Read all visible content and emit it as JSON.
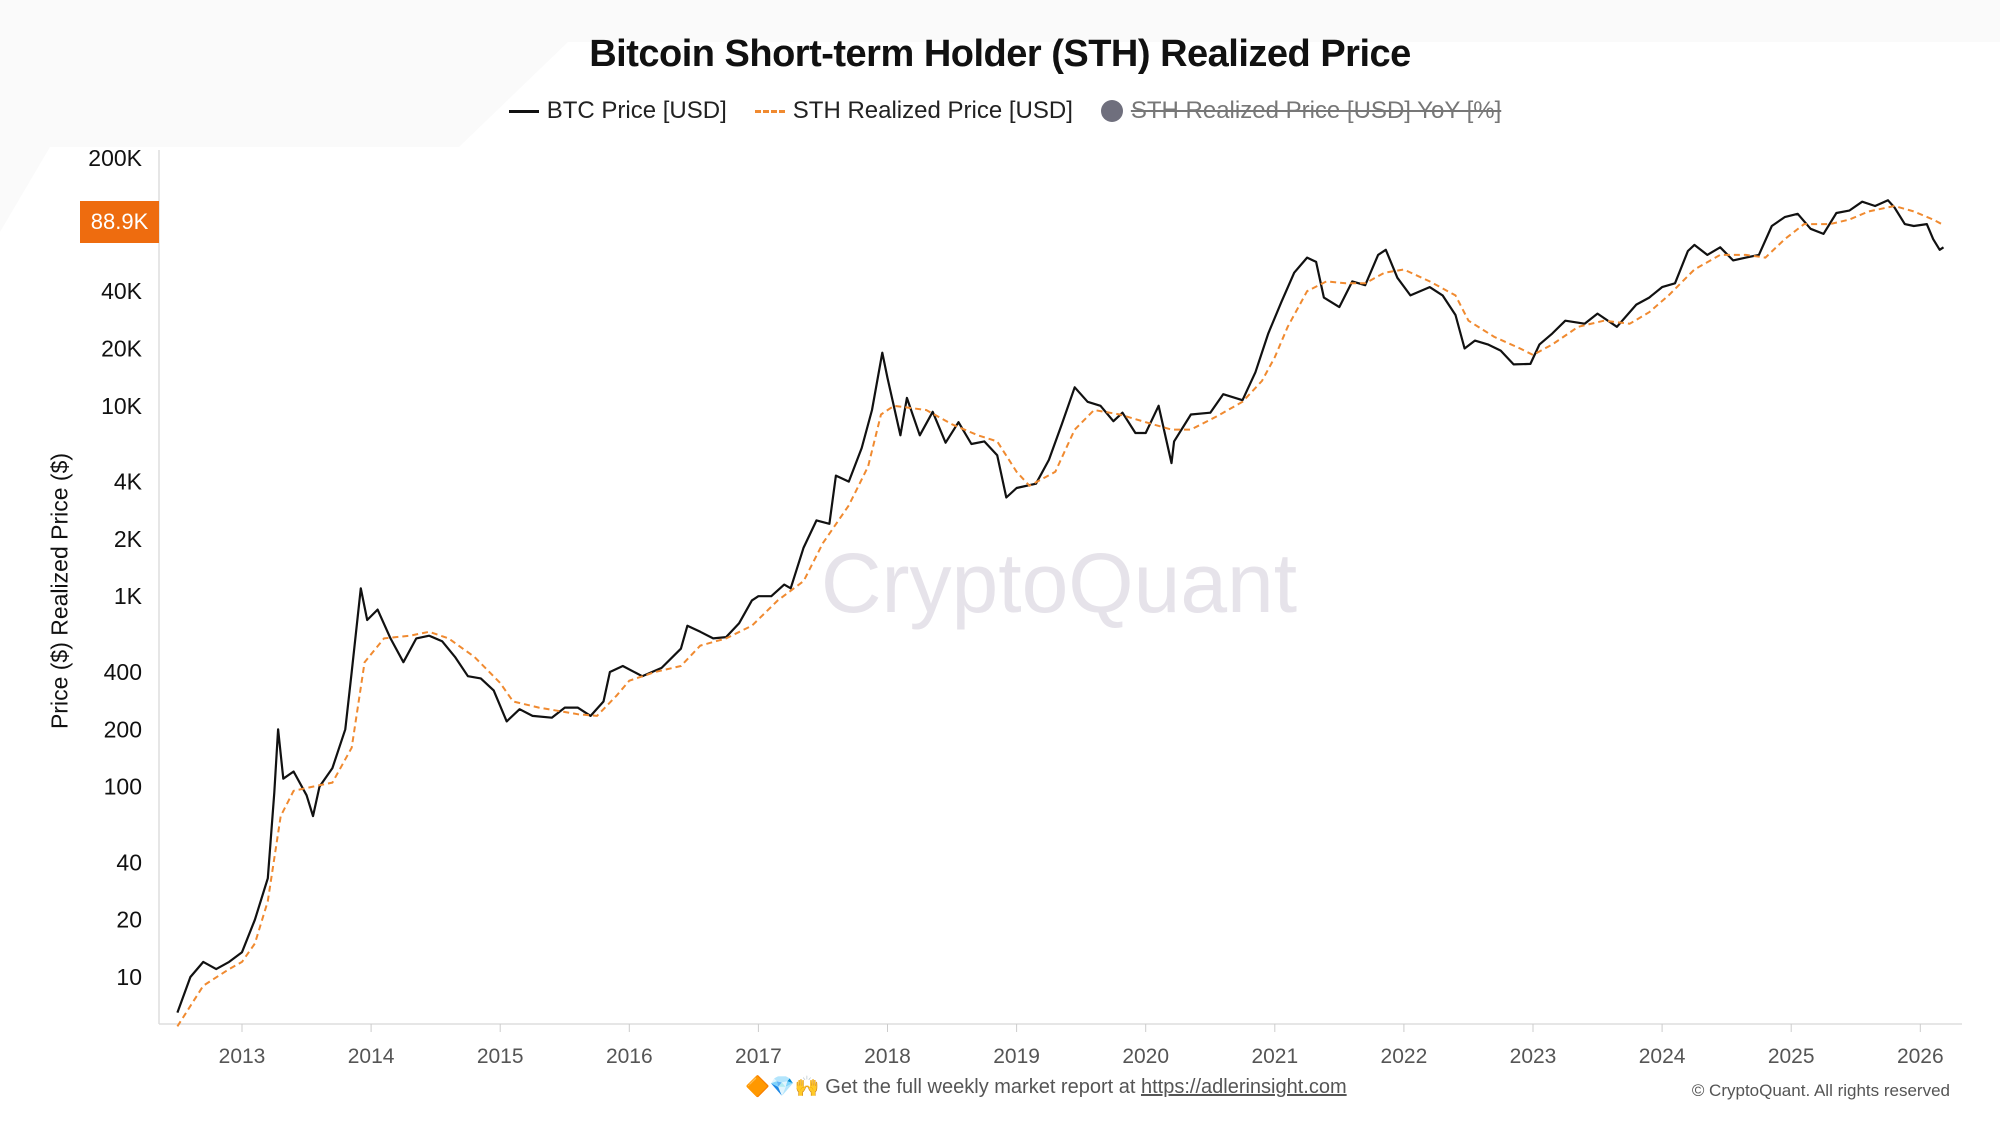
{
  "title": "Bitcoin Short-term Holder (STH) Realized Price",
  "legend": [
    {
      "label": "BTC Price [USD]",
      "active": true
    },
    {
      "label": "STH Realized Price [USD]",
      "active": true
    },
    {
      "label": "STH Realized Price [USD] YoY [%]",
      "active": false
    }
  ],
  "watermark": "CryptoQuant",
  "current_value_label": "88.9K",
  "footer": {
    "emoji": "🔶💎🙌",
    "text": "Get the full weekly market report at",
    "link": "https://adlerinsight.com",
    "copyright": "© CryptoQuant. All rights reserved"
  },
  "colors": {
    "btc": "#111111",
    "sth": "#f08a30",
    "highlight": "#ee6c0f"
  },
  "chart_data": {
    "type": "line",
    "title": "Bitcoin Short-term Holder (STH) Realized Price",
    "xlabel": "",
    "ylabel": "Price ($) Realized Price ($)",
    "yscale": "log",
    "ylim": [
      5.66,
      200000
    ],
    "xlim": [
      2012.4,
      2026.3
    ],
    "grid": false,
    "legend_position": "top-center",
    "x_ticks": [
      "2013",
      "2014",
      "2015",
      "2016",
      "2017",
      "2018",
      "2019",
      "2020",
      "2021",
      "2022",
      "2023",
      "2024",
      "2025",
      "2026"
    ],
    "y_ticks": [
      {
        "label": "200K",
        "value": 200000
      },
      {
        "label": "40K",
        "value": 40000
      },
      {
        "label": "20K",
        "value": 20000
      },
      {
        "label": "10K",
        "value": 10000
      },
      {
        "label": "4K",
        "value": 4000
      },
      {
        "label": "2K",
        "value": 2000
      },
      {
        "label": "1K",
        "value": 1000
      },
      {
        "label": "400",
        "value": 400
      },
      {
        "label": "200",
        "value": 200
      },
      {
        "label": "100",
        "value": 100
      },
      {
        "label": "40",
        "value": 40
      },
      {
        "label": "20",
        "value": 20
      },
      {
        "label": "10",
        "value": 10
      }
    ],
    "series": [
      {
        "name": "BTC Price [USD]",
        "style": "solid",
        "points": [
          [
            2012.5,
            6.5
          ],
          [
            2012.6,
            10
          ],
          [
            2012.7,
            12
          ],
          [
            2012.8,
            11
          ],
          [
            2012.9,
            12
          ],
          [
            2013.0,
            13.5
          ],
          [
            2013.1,
            20
          ],
          [
            2013.2,
            33
          ],
          [
            2013.25,
            93
          ],
          [
            2013.28,
            200
          ],
          [
            2013.32,
            110
          ],
          [
            2013.4,
            120
          ],
          [
            2013.5,
            90
          ],
          [
            2013.55,
            70
          ],
          [
            2013.6,
            100
          ],
          [
            2013.7,
            125
          ],
          [
            2013.8,
            200
          ],
          [
            2013.85,
            400
          ],
          [
            2013.92,
            1100
          ],
          [
            2013.97,
            750
          ],
          [
            2014.05,
            850
          ],
          [
            2014.15,
            600
          ],
          [
            2014.25,
            450
          ],
          [
            2014.35,
            600
          ],
          [
            2014.45,
            620
          ],
          [
            2014.55,
            580
          ],
          [
            2014.65,
            480
          ],
          [
            2014.75,
            380
          ],
          [
            2014.85,
            370
          ],
          [
            2014.95,
            320
          ],
          [
            2015.05,
            220
          ],
          [
            2015.15,
            255
          ],
          [
            2015.25,
            235
          ],
          [
            2015.4,
            230
          ],
          [
            2015.5,
            260
          ],
          [
            2015.6,
            260
          ],
          [
            2015.7,
            235
          ],
          [
            2015.8,
            280
          ],
          [
            2015.85,
            400
          ],
          [
            2015.95,
            430
          ],
          [
            2016.1,
            380
          ],
          [
            2016.25,
            420
          ],
          [
            2016.4,
            530
          ],
          [
            2016.45,
            700
          ],
          [
            2016.55,
            650
          ],
          [
            2016.65,
            600
          ],
          [
            2016.75,
            610
          ],
          [
            2016.85,
            720
          ],
          [
            2016.95,
            950
          ],
          [
            2017.0,
            1000
          ],
          [
            2017.1,
            1000
          ],
          [
            2017.2,
            1150
          ],
          [
            2017.25,
            1100
          ],
          [
            2017.35,
            1800
          ],
          [
            2017.45,
            2500
          ],
          [
            2017.55,
            2400
          ],
          [
            2017.6,
            4300
          ],
          [
            2017.7,
            4000
          ],
          [
            2017.8,
            6000
          ],
          [
            2017.88,
            9500
          ],
          [
            2017.96,
            19000
          ],
          [
            2018.0,
            14000
          ],
          [
            2018.1,
            7000
          ],
          [
            2018.15,
            11000
          ],
          [
            2018.25,
            7000
          ],
          [
            2018.35,
            9300
          ],
          [
            2018.45,
            6400
          ],
          [
            2018.55,
            8200
          ],
          [
            2018.65,
            6300
          ],
          [
            2018.75,
            6500
          ],
          [
            2018.85,
            5500
          ],
          [
            2018.92,
            3300
          ],
          [
            2019.0,
            3700
          ],
          [
            2019.15,
            3900
          ],
          [
            2019.25,
            5200
          ],
          [
            2019.35,
            8000
          ],
          [
            2019.45,
            12500
          ],
          [
            2019.55,
            10500
          ],
          [
            2019.65,
            10000
          ],
          [
            2019.75,
            8300
          ],
          [
            2019.82,
            9200
          ],
          [
            2019.92,
            7200
          ],
          [
            2020.0,
            7200
          ],
          [
            2020.1,
            10000
          ],
          [
            2020.2,
            5000
          ],
          [
            2020.22,
            6500
          ],
          [
            2020.35,
            9000
          ],
          [
            2020.5,
            9200
          ],
          [
            2020.6,
            11500
          ],
          [
            2020.75,
            10700
          ],
          [
            2020.85,
            15000
          ],
          [
            2020.95,
            24000
          ],
          [
            2021.05,
            35000
          ],
          [
            2021.15,
            50000
          ],
          [
            2021.25,
            60000
          ],
          [
            2021.32,
            57000
          ],
          [
            2021.38,
            37000
          ],
          [
            2021.5,
            33000
          ],
          [
            2021.6,
            45000
          ],
          [
            2021.7,
            43000
          ],
          [
            2021.8,
            62000
          ],
          [
            2021.86,
            66000
          ],
          [
            2021.95,
            47000
          ],
          [
            2022.05,
            38000
          ],
          [
            2022.2,
            42000
          ],
          [
            2022.3,
            38000
          ],
          [
            2022.4,
            30000
          ],
          [
            2022.47,
            20000
          ],
          [
            2022.55,
            22000
          ],
          [
            2022.65,
            21000
          ],
          [
            2022.75,
            19500
          ],
          [
            2022.85,
            16500
          ],
          [
            2022.98,
            16600
          ],
          [
            2023.05,
            21000
          ],
          [
            2023.15,
            24000
          ],
          [
            2023.25,
            28000
          ],
          [
            2023.4,
            27000
          ],
          [
            2023.5,
            30500
          ],
          [
            2023.65,
            26000
          ],
          [
            2023.8,
            34000
          ],
          [
            2023.9,
            37000
          ],
          [
            2024.0,
            42000
          ],
          [
            2024.1,
            44000
          ],
          [
            2024.2,
            65000
          ],
          [
            2024.25,
            70000
          ],
          [
            2024.35,
            62000
          ],
          [
            2024.45,
            68000
          ],
          [
            2024.55,
            58000
          ],
          [
            2024.65,
            60000
          ],
          [
            2024.75,
            62000
          ],
          [
            2024.85,
            88000
          ],
          [
            2024.95,
            98000
          ],
          [
            2025.05,
            102000
          ],
          [
            2025.15,
            85000
          ],
          [
            2025.25,
            80000
          ],
          [
            2025.35,
            103000
          ],
          [
            2025.45,
            106000
          ],
          [
            2025.55,
            118000
          ],
          [
            2025.65,
            112000
          ],
          [
            2025.75,
            120000
          ],
          [
            2025.8,
            110000
          ],
          [
            2025.88,
            90000
          ],
          [
            2025.95,
            88000
          ],
          [
            2026.05,
            90000
          ],
          [
            2026.1,
            75000
          ],
          [
            2026.15,
            66000
          ],
          [
            2026.18,
            68000
          ]
        ]
      },
      {
        "name": "STH Realized Price [USD]",
        "style": "dashed",
        "points": [
          [
            2012.5,
            5.5
          ],
          [
            2012.7,
            9
          ],
          [
            2012.9,
            11
          ],
          [
            2013.0,
            12
          ],
          [
            2013.1,
            15
          ],
          [
            2013.2,
            25
          ],
          [
            2013.3,
            70
          ],
          [
            2013.4,
            95
          ],
          [
            2013.55,
            100
          ],
          [
            2013.7,
            105
          ],
          [
            2013.85,
            160
          ],
          [
            2013.95,
            450
          ],
          [
            2014.1,
            600
          ],
          [
            2014.3,
            620
          ],
          [
            2014.45,
            650
          ],
          [
            2014.6,
            600
          ],
          [
            2014.8,
            480
          ],
          [
            2015.0,
            350
          ],
          [
            2015.1,
            280
          ],
          [
            2015.3,
            260
          ],
          [
            2015.6,
            240
          ],
          [
            2015.75,
            235
          ],
          [
            2015.9,
            300
          ],
          [
            2016.0,
            360
          ],
          [
            2016.2,
            400
          ],
          [
            2016.4,
            430
          ],
          [
            2016.55,
            550
          ],
          [
            2016.75,
            600
          ],
          [
            2016.95,
            700
          ],
          [
            2017.15,
            950
          ],
          [
            2017.35,
            1200
          ],
          [
            2017.5,
            1900
          ],
          [
            2017.7,
            3000
          ],
          [
            2017.85,
            4800
          ],
          [
            2017.95,
            9000
          ],
          [
            2018.05,
            10000
          ],
          [
            2018.3,
            9500
          ],
          [
            2018.5,
            8000
          ],
          [
            2018.7,
            7000
          ],
          [
            2018.85,
            6500
          ],
          [
            2019.0,
            4500
          ],
          [
            2019.1,
            3800
          ],
          [
            2019.3,
            4500
          ],
          [
            2019.45,
            7500
          ],
          [
            2019.6,
            9500
          ],
          [
            2019.8,
            9000
          ],
          [
            2020.0,
            8200
          ],
          [
            2020.2,
            7500
          ],
          [
            2020.35,
            7500
          ],
          [
            2020.55,
            8800
          ],
          [
            2020.75,
            10500
          ],
          [
            2020.9,
            13500
          ],
          [
            2021.0,
            18000
          ],
          [
            2021.1,
            26000
          ],
          [
            2021.25,
            40000
          ],
          [
            2021.4,
            45000
          ],
          [
            2021.55,
            44000
          ],
          [
            2021.7,
            44000
          ],
          [
            2021.85,
            50000
          ],
          [
            2022.0,
            52000
          ],
          [
            2022.2,
            45000
          ],
          [
            2022.4,
            38000
          ],
          [
            2022.5,
            28000
          ],
          [
            2022.7,
            23000
          ],
          [
            2022.9,
            20000
          ],
          [
            2023.0,
            18500
          ],
          [
            2023.15,
            21000
          ],
          [
            2023.35,
            26000
          ],
          [
            2023.55,
            28000
          ],
          [
            2023.75,
            27000
          ],
          [
            2023.9,
            31000
          ],
          [
            2024.05,
            38000
          ],
          [
            2024.25,
            52000
          ],
          [
            2024.45,
            62000
          ],
          [
            2024.65,
            62000
          ],
          [
            2024.8,
            60000
          ],
          [
            2024.95,
            75000
          ],
          [
            2025.1,
            90000
          ],
          [
            2025.3,
            90000
          ],
          [
            2025.45,
            95000
          ],
          [
            2025.6,
            105000
          ],
          [
            2025.8,
            112000
          ],
          [
            2025.95,
            105000
          ],
          [
            2026.1,
            95000
          ],
          [
            2026.18,
            89000
          ]
        ]
      }
    ]
  }
}
